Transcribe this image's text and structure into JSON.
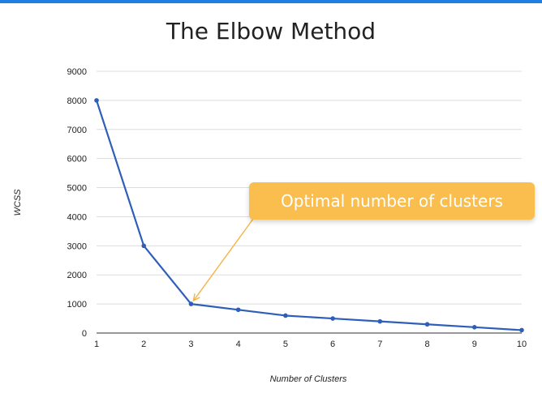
{
  "chart_data": {
    "type": "line",
    "title": "The Elbow Method",
    "xlabel": "Number of Clusters",
    "ylabel": "WCSS",
    "x": [
      1,
      2,
      3,
      4,
      5,
      6,
      7,
      8,
      9,
      10
    ],
    "series": [
      {
        "values": [
          8000,
          3000,
          1000,
          800,
          600,
          500,
          400,
          300,
          200,
          100
        ]
      }
    ],
    "xlim": [
      1,
      10
    ],
    "ylim": [
      0,
      9000
    ],
    "yticks": [
      0,
      1000,
      2000,
      3000,
      4000,
      5000,
      6000,
      7000,
      8000,
      9000
    ],
    "grid": true,
    "legend": "none",
    "annotation": {
      "text": "Optimal number of clusters",
      "points_to_x": 3,
      "points_to_y": 1000
    }
  },
  "colors": {
    "accent_bar": "#1e7fe0",
    "line": "#2e5fb8",
    "callout": "#f9be4d",
    "arrow": "#f5b342",
    "grid": "#dddddd"
  }
}
